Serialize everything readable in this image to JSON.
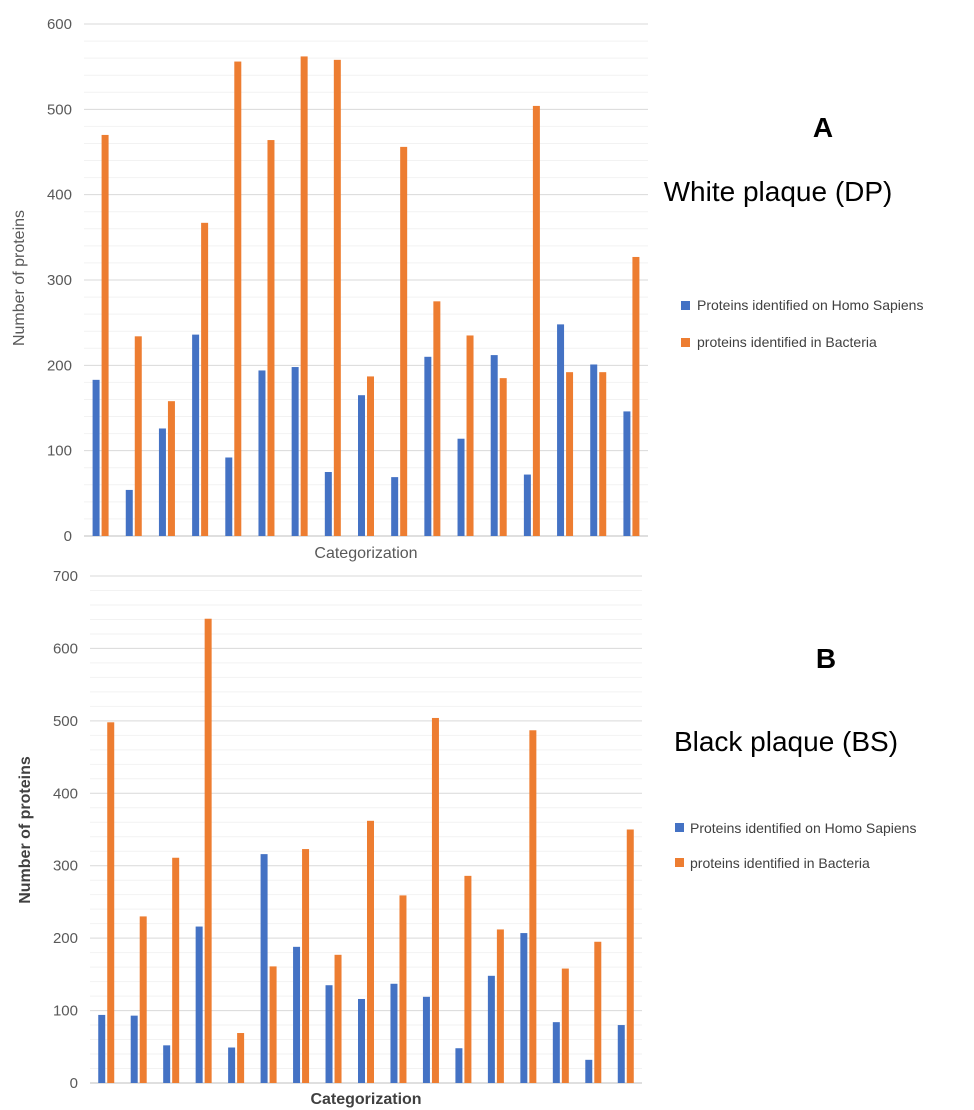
{
  "colors": {
    "homo": "#4472C4",
    "bacteria": "#ED7D31",
    "grid_major": "#d9d9d9",
    "grid_minor": "#f2f2f2"
  },
  "chart_data": [
    {
      "type": "bar",
      "panel": "A",
      "title": "White plaque (DP)",
      "xlabel": "Categorization",
      "ylabel": "Number of proteins",
      "ylim": [
        0,
        600
      ],
      "yticks": [
        0,
        100,
        200,
        300,
        400,
        500,
        600
      ],
      "grid": true,
      "legend": "right",
      "series": [
        {
          "name": "Proteins identified on Homo Sapiens",
          "color": "#4472C4",
          "values": [
            183,
            54,
            126,
            236,
            92,
            194,
            198,
            75,
            165,
            69,
            210,
            114,
            212,
            72,
            248,
            201,
            146
          ]
        },
        {
          "name": "proteins identified in Bacteria",
          "color": "#ED7D31",
          "values": [
            470,
            234,
            158,
            367,
            556,
            464,
            562,
            558,
            187,
            456,
            275,
            235,
            185,
            504,
            192,
            192,
            327
          ]
        }
      ]
    },
    {
      "type": "bar",
      "panel": "B",
      "title": "Black plaque (BS)",
      "xlabel": "Categorization",
      "ylabel": "Number of proteins",
      "ylim": [
        0,
        700
      ],
      "yticks": [
        0,
        100,
        200,
        300,
        400,
        500,
        600,
        700
      ],
      "grid": true,
      "legend": "right",
      "series": [
        {
          "name": "Proteins identified on Homo Sapiens",
          "color": "#4472C4",
          "values": [
            94,
            93,
            52,
            216,
            49,
            316,
            188,
            135,
            116,
            137,
            119,
            48,
            148,
            207,
            84,
            32,
            80
          ]
        },
        {
          "name": "proteins identified in Bacteria",
          "color": "#ED7D31",
          "values": [
            498,
            230,
            311,
            641,
            69,
            161,
            323,
            177,
            362,
            259,
            504,
            286,
            212,
            487,
            158,
            195,
            350
          ]
        }
      ]
    }
  ]
}
